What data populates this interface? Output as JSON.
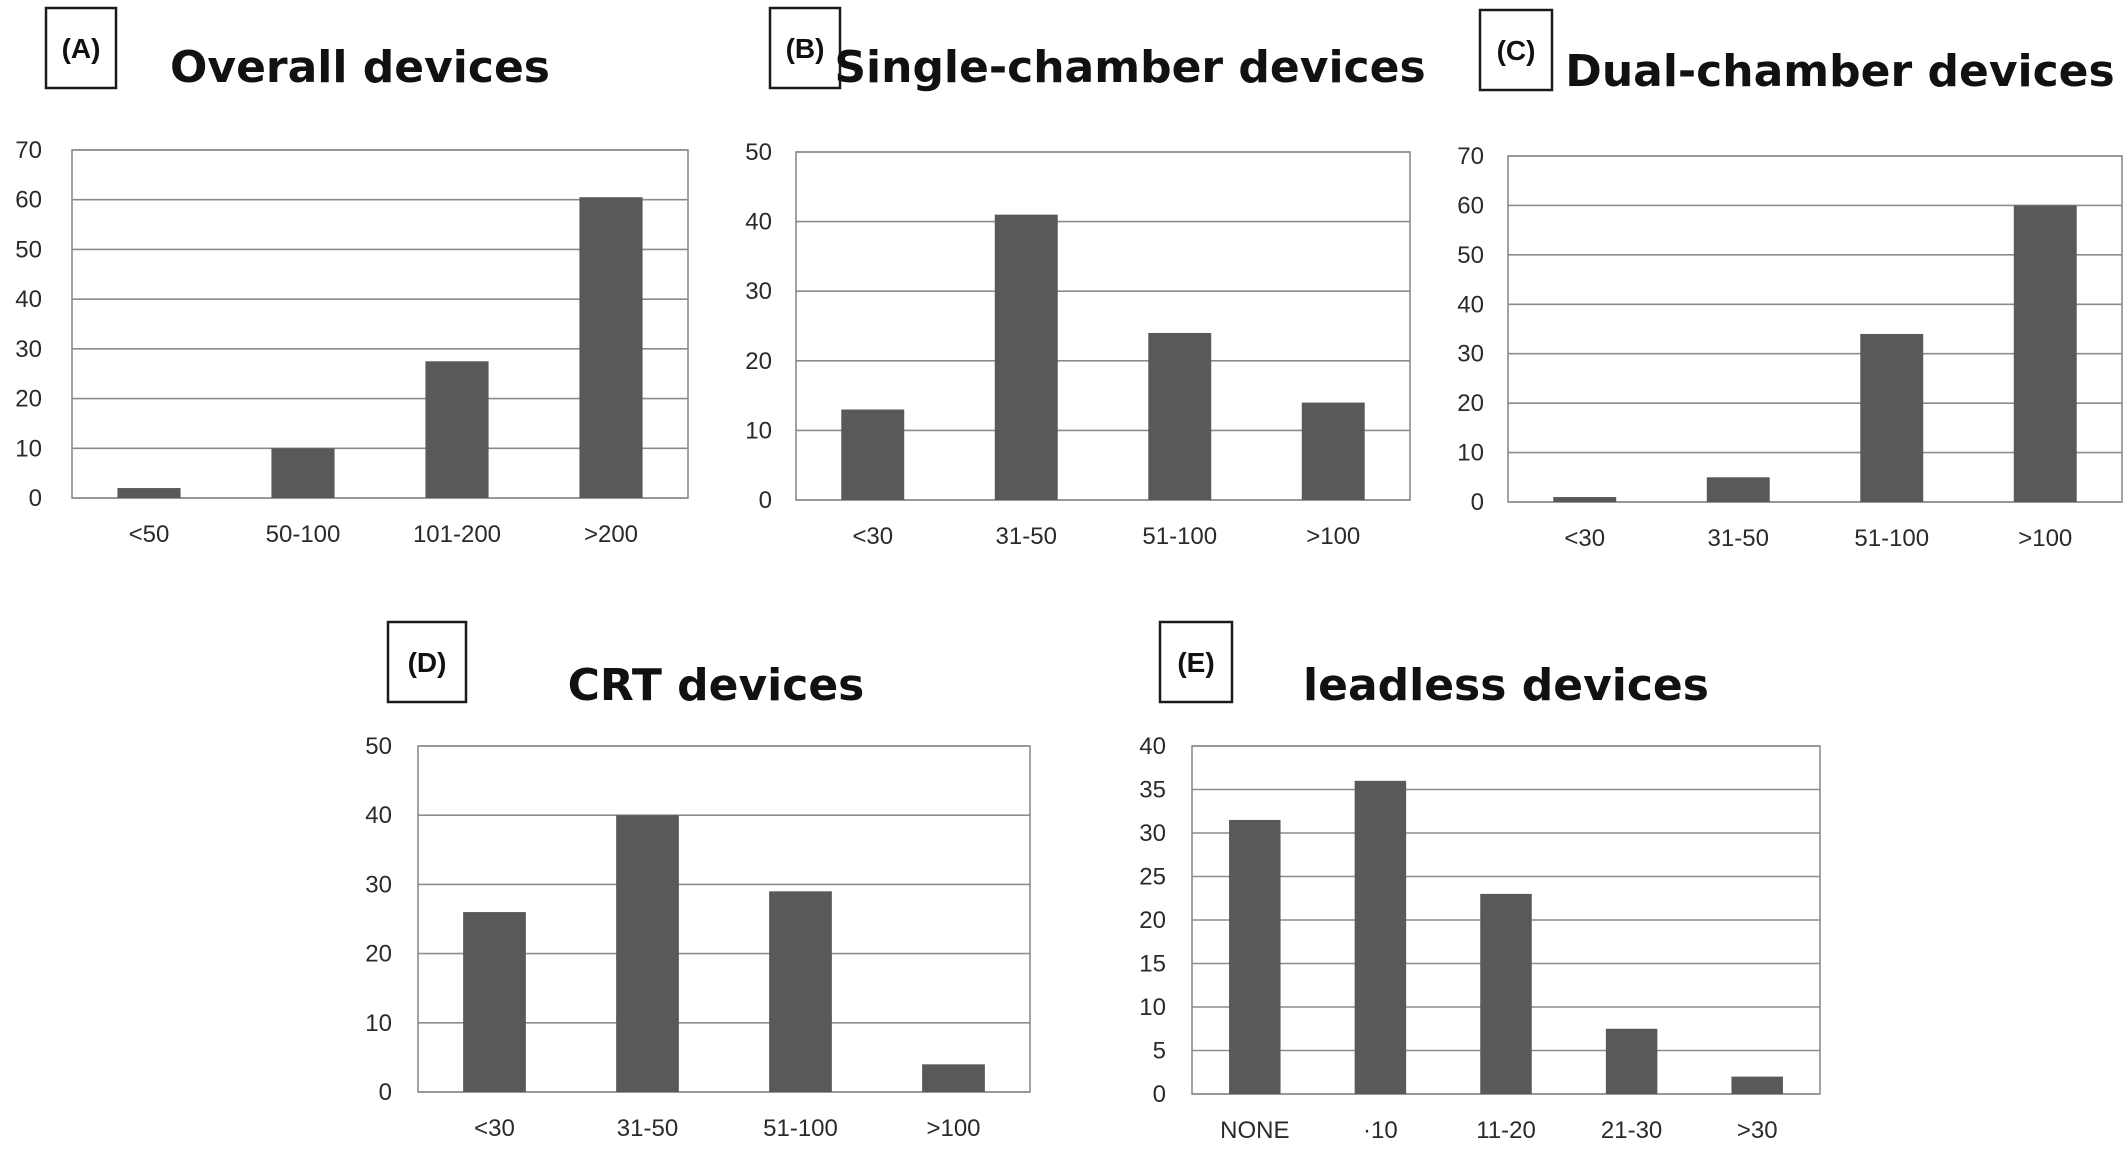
{
  "chart_data": [
    {
      "panel": "(A)",
      "title": "Overall devices",
      "type": "bar",
      "categories": [
        "<50",
        "50-100",
        "101-200",
        ">200"
      ],
      "values": [
        2,
        10,
        27.5,
        60.5
      ],
      "ylim": [
        0,
        70
      ],
      "yticks": [
        0,
        10,
        20,
        30,
        40,
        50,
        60,
        70
      ],
      "xlabel": "",
      "ylabel": "",
      "grid": true,
      "legend": "none",
      "bar_color": "#595959"
    },
    {
      "panel": "(B)",
      "title": "Single-chamber devices",
      "type": "bar",
      "categories": [
        "<30",
        "31-50",
        "51-100",
        ">100"
      ],
      "values": [
        13,
        41,
        24,
        14
      ],
      "ylim": [
        0,
        50
      ],
      "yticks": [
        0,
        10,
        20,
        30,
        40,
        50
      ],
      "xlabel": "",
      "ylabel": "",
      "grid": true,
      "legend": "none",
      "bar_color": "#595959"
    },
    {
      "panel": "(C)",
      "title": "Dual-chamber devices",
      "type": "bar",
      "categories": [
        "<30",
        "31-50",
        "51-100",
        ">100"
      ],
      "values": [
        1,
        5,
        34,
        60
      ],
      "ylim": [
        0,
        70
      ],
      "yticks": [
        0,
        10,
        20,
        30,
        40,
        50,
        60,
        70
      ],
      "xlabel": "",
      "ylabel": "",
      "grid": true,
      "legend": "none",
      "bar_color": "#595959"
    },
    {
      "panel": "(D)",
      "title": "CRT devices",
      "type": "bar",
      "categories": [
        "<30",
        "31-50",
        "51-100",
        ">100"
      ],
      "values": [
        26,
        40,
        29,
        4
      ],
      "ylim": [
        0,
        50
      ],
      "yticks": [
        0,
        10,
        20,
        30,
        40,
        50
      ],
      "xlabel": "",
      "ylabel": "",
      "grid": true,
      "legend": "none",
      "bar_color": "#595959"
    },
    {
      "panel": "(E)",
      "title": "leadless devices",
      "type": "bar",
      "categories": [
        "NONE",
        "·10",
        "11-20",
        "21-30",
        ">30"
      ],
      "values": [
        31.5,
        36,
        23,
        7.5,
        2
      ],
      "ylim": [
        0,
        40
      ],
      "yticks": [
        0,
        5,
        10,
        15,
        20,
        25,
        30,
        35,
        40
      ],
      "xlabel": "",
      "ylabel": "",
      "grid": true,
      "legend": "none",
      "bar_color": "#595959"
    }
  ]
}
